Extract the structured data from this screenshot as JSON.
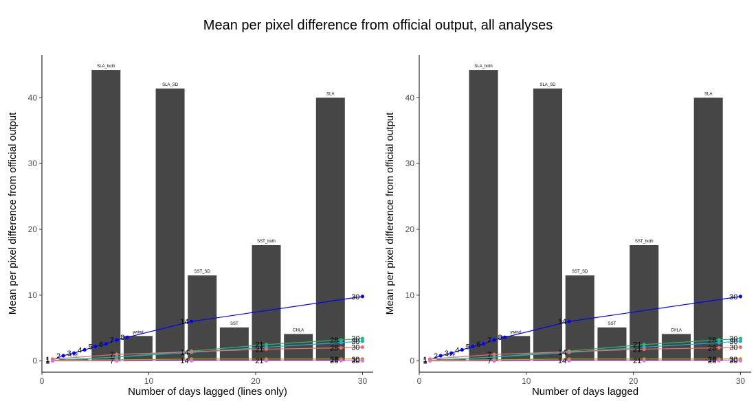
{
  "title": "Mean per pixel difference from official output, all analyses",
  "colors": {
    "bar": "#464646",
    "SLA": "#0000ff",
    "green": "#2bb673",
    "teal": "#11b3d3",
    "salmon": "#e8706a",
    "olive": "#a3a500",
    "magenta": "#e76bf3",
    "purple": "#7f6fd6",
    "axis": "#000000"
  },
  "chart_data": [
    {
      "type": "bar",
      "xlabel": "Number of days lagged (lines only)",
      "ylabel": "Mean per pixel difference from official output",
      "xlim": [
        0,
        31
      ],
      "ylim": [
        -1.7,
        46.5
      ],
      "xticks": [
        0,
        10,
        20,
        30
      ],
      "yticks": [
        0,
        10,
        20,
        30,
        40
      ],
      "bars": [
        {
          "label": "EKE",
          "x": 3,
          "value": 0.3
        },
        {
          "label": "SLA_both",
          "x": 6,
          "value": 44.2
        },
        {
          "label": "ywind",
          "x": 9,
          "value": 3.8
        },
        {
          "label": "SLA_SD",
          "x": 12,
          "value": 41.4
        },
        {
          "label": "SST_SD",
          "x": 15,
          "value": 13.0
        },
        {
          "label": "SST",
          "x": 18,
          "value": 5.1
        },
        {
          "label": "SST_both",
          "x": 21,
          "value": 17.6
        },
        {
          "label": "CHLA",
          "x": 24,
          "value": 4.1
        },
        {
          "label": "SLA",
          "x": 27,
          "value": 40.0
        }
      ],
      "series": [
        {
          "color_key": "SLA",
          "x": [
            1,
            2,
            3,
            4,
            5,
            6,
            7,
            8,
            14,
            30
          ],
          "y": [
            0.2,
            0.8,
            1.2,
            1.7,
            2.2,
            2.6,
            3.2,
            3.6,
            6.0,
            9.8
          ],
          "labels": [
            "1",
            "2",
            "3",
            "4",
            "5",
            "6",
            "7",
            "8",
            "14",
            "30"
          ]
        },
        {
          "color_key": "green",
          "x": [
            1,
            7,
            14,
            21,
            28,
            30
          ],
          "y": [
            0.1,
            0.6,
            1.5,
            2.5,
            3.2,
            3.4
          ],
          "labels": [
            "",
            "",
            "",
            "21",
            "28",
            "30"
          ]
        },
        {
          "color_key": "teal",
          "x": [
            1,
            7,
            14,
            21,
            28,
            30
          ],
          "y": [
            0.1,
            0.6,
            1.3,
            2.1,
            2.8,
            3.0
          ],
          "labels": [
            "",
            "",
            "14",
            "",
            "",
            "30"
          ]
        },
        {
          "color_key": "salmon",
          "x": [
            1,
            7,
            14,
            21,
            28,
            30
          ],
          "y": [
            0.3,
            1.0,
            1.4,
            1.8,
            2.0,
            2.1
          ],
          "labels": [
            "1",
            "7",
            "",
            "21",
            "28",
            "30"
          ]
        },
        {
          "color_key": "olive",
          "x": [
            1,
            7,
            14,
            21,
            28,
            30
          ],
          "y": [
            0.1,
            0.2,
            0.3,
            0.3,
            0.3,
            0.3
          ],
          "labels": [
            "",
            "",
            "",
            "",
            "28",
            "30"
          ]
        },
        {
          "color_key": "magenta",
          "x": [
            1,
            7,
            14,
            21,
            28,
            30
          ],
          "y": [
            0.0,
            0.0,
            0.05,
            0.05,
            0.05,
            0.05
          ],
          "labels": [
            "1",
            "7",
            "14",
            "21",
            "28",
            "30"
          ]
        }
      ]
    },
    {
      "type": "bar",
      "xlabel": "Number of days lagged",
      "ylabel": "Mean per pixel difference from official output",
      "xlim": [
        0,
        31
      ],
      "ylim": [
        -1.7,
        46.5
      ],
      "xticks": [
        0,
        10,
        20,
        30
      ],
      "yticks": [
        0,
        10,
        20,
        30,
        40
      ],
      "bars": [
        {
          "label": "EKE",
          "x": 3,
          "value": 0.3
        },
        {
          "label": "SLA_both",
          "x": 6,
          "value": 44.2
        },
        {
          "label": "ywind",
          "x": 9,
          "value": 3.8
        },
        {
          "label": "SLA_SD",
          "x": 12,
          "value": 41.4
        },
        {
          "label": "SST_SD",
          "x": 15,
          "value": 13.0
        },
        {
          "label": "SST",
          "x": 18,
          "value": 5.1
        },
        {
          "label": "SST_both",
          "x": 21,
          "value": 17.6
        },
        {
          "label": "CHLA",
          "x": 24,
          "value": 4.1
        },
        {
          "label": "SLA",
          "x": 27,
          "value": 40.0
        }
      ],
      "series": [
        {
          "color_key": "SLA",
          "x": [
            1,
            2,
            3,
            4,
            5,
            6,
            7,
            8,
            14,
            30
          ],
          "y": [
            0.2,
            0.8,
            1.2,
            1.7,
            2.2,
            2.6,
            3.2,
            3.6,
            6.0,
            9.8
          ],
          "labels": [
            "1",
            "2",
            "3",
            "4",
            "5",
            "6",
            "7",
            "8",
            "14",
            "30"
          ]
        },
        {
          "color_key": "green",
          "x": [
            1,
            7,
            14,
            21,
            28,
            30
          ],
          "y": [
            0.1,
            0.6,
            1.5,
            2.5,
            3.2,
            3.4
          ],
          "labels": [
            "",
            "",
            "",
            "21",
            "28",
            "30"
          ]
        },
        {
          "color_key": "teal",
          "x": [
            1,
            7,
            14,
            21,
            28,
            30
          ],
          "y": [
            0.1,
            0.6,
            1.3,
            2.1,
            2.8,
            3.0
          ],
          "labels": [
            "",
            "",
            "14",
            "",
            "",
            "30"
          ]
        },
        {
          "color_key": "salmon",
          "x": [
            1,
            7,
            14,
            21,
            28,
            30
          ],
          "y": [
            0.3,
            1.0,
            1.4,
            1.8,
            2.0,
            2.1
          ],
          "labels": [
            "1",
            "7",
            "",
            "21",
            "28",
            "30"
          ]
        },
        {
          "color_key": "olive",
          "x": [
            1,
            7,
            14,
            21,
            28,
            30
          ],
          "y": [
            0.1,
            0.2,
            0.3,
            0.3,
            0.3,
            0.3
          ],
          "labels": [
            "",
            "",
            "",
            "",
            "28",
            "30"
          ]
        },
        {
          "color_key": "magenta",
          "x": [
            1,
            7,
            14,
            21,
            28,
            30
          ],
          "y": [
            0.0,
            0.0,
            0.05,
            0.05,
            0.05,
            0.05
          ],
          "labels": [
            "1",
            "7",
            "14",
            "21",
            "28",
            "30"
          ]
        }
      ]
    }
  ]
}
